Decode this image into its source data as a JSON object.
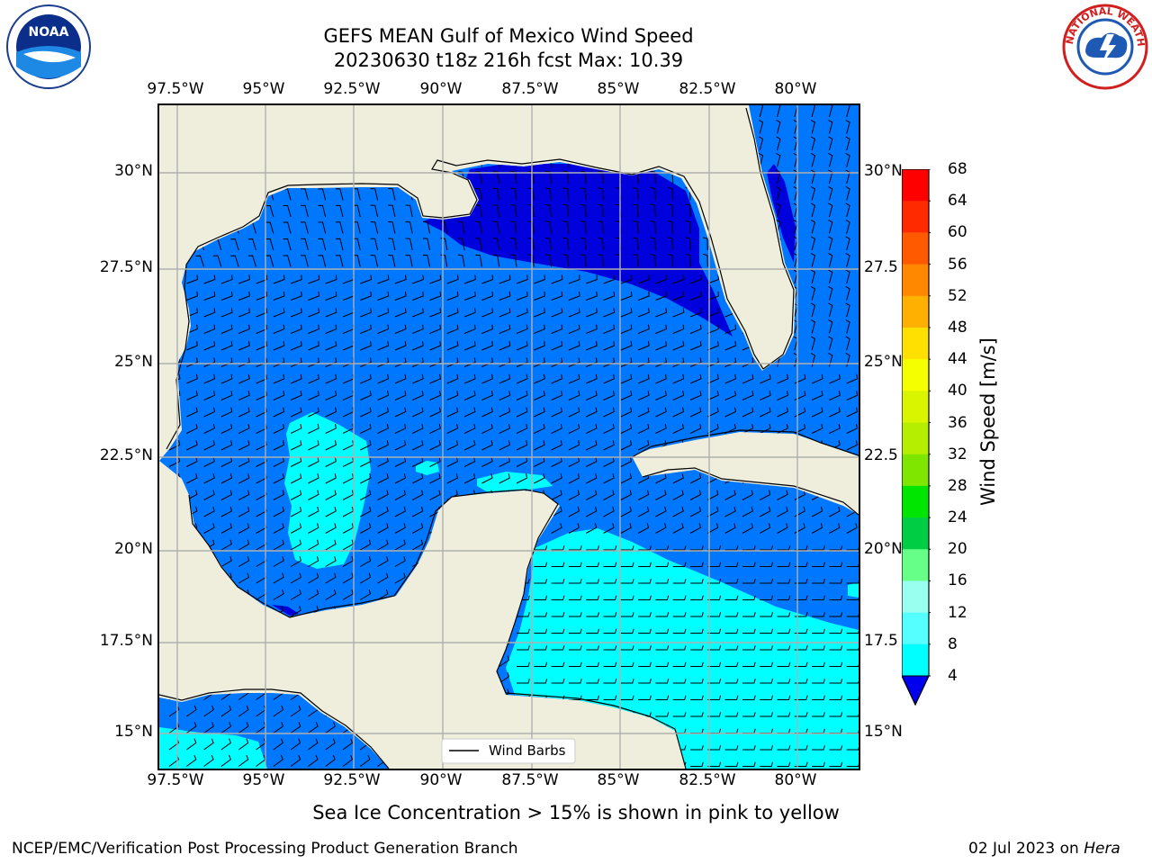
{
  "title": {
    "line1": "GEFS MEAN Gulf of Mexico Wind Speed",
    "line2": "20230630 t18z 216h fcst   Max: 10.39"
  },
  "logos": {
    "left_text": "NOAA",
    "right_text": "NATIONAL WEATHER SERVICE"
  },
  "axes": {
    "lon_ticks": [
      "97.5°W",
      "95°W",
      "92.5°W",
      "90°W",
      "87.5°W",
      "85°W",
      "82.5°W",
      "80°W"
    ],
    "lat_ticks_left": [
      "30°N",
      "27.5°N",
      "25°N",
      "22.5°N",
      "20°N",
      "17.5°N",
      "15°N"
    ],
    "lat_ticks_right": [
      "30°N",
      "27.5",
      "25°N",
      "22.5",
      "20°N",
      "17.5",
      "15°N"
    ]
  },
  "legend": {
    "label": "Wind Barbs"
  },
  "colorbar": {
    "label": "Wind Speed [m/s]",
    "ticks": [
      "68",
      "64",
      "60",
      "56",
      "52",
      "48",
      "44",
      "40",
      "36",
      "32",
      "28",
      "24",
      "20",
      "16",
      "12",
      "8",
      "4"
    ],
    "colors": [
      "#ff0000",
      "#ff2a00",
      "#ff5a00",
      "#ff8800",
      "#ffb000",
      "#ffe000",
      "#f5ff00",
      "#d9f500",
      "#b5ee00",
      "#7fe600",
      "#00e600",
      "#00cc44",
      "#66ff88",
      "#99ffee",
      "#55ffff",
      "#00ffff",
      "#0077ff"
    ],
    "under_color": "#0000ee"
  },
  "map_colors": {
    "land": "#efeedd",
    "ocean_4_8": "#0077ff",
    "ocean_0_4": "#0000dd",
    "ocean_8_12": "#00ffff",
    "coast": "#000000",
    "grid": "#b0b0b0"
  },
  "note": "Sea Ice Concentration > 15% is shown in pink to yellow",
  "footer": {
    "left": "NCEP/EMC/Verification Post Processing Product Generation Branch",
    "date": "02 Jul 2023 on ",
    "host": "Hera"
  }
}
